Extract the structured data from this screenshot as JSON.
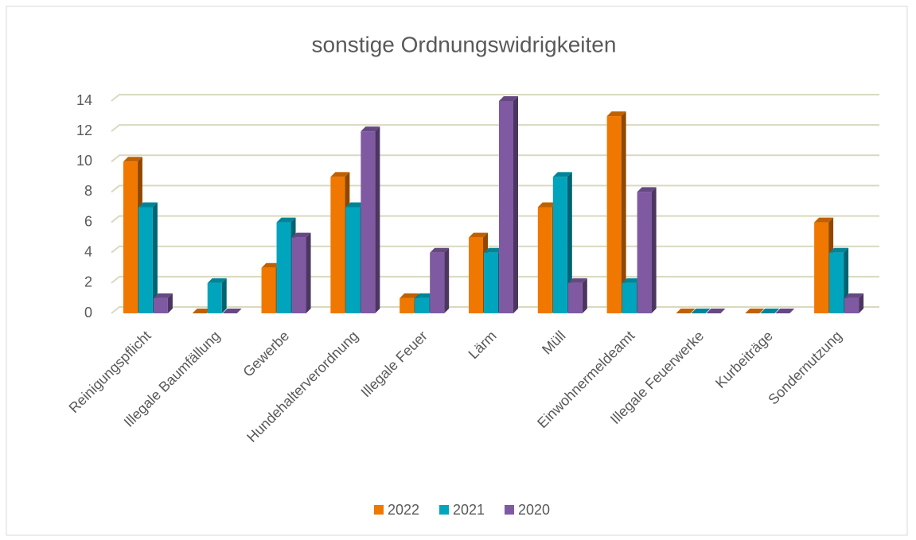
{
  "chart_data": {
    "type": "bar3d",
    "title": "sonstige Ordnungswidrigkeiten",
    "categories": [
      "Reinigungspflicht",
      "Illegale Baumfällung",
      "Gewerbe",
      "Hundehalterverordnung",
      "Illegale Feuer",
      "Lärm",
      "Müll",
      "Einwohnermeldeamt",
      "Illegale Feuerwerke",
      "Kurbeiträge",
      "Sondernutzung"
    ],
    "series": [
      {
        "name": "2022",
        "color": "#f07800",
        "values": [
          10,
          0,
          3,
          9,
          1,
          5,
          7,
          13,
          0,
          0,
          6
        ]
      },
      {
        "name": "2021",
        "color": "#00a5bd",
        "values": [
          7,
          2,
          6,
          7,
          1,
          4,
          9,
          2,
          0,
          0,
          4
        ]
      },
      {
        "name": "2020",
        "color": "#7f5aa2",
        "values": [
          1,
          0,
          5,
          12,
          4,
          14,
          2,
          8,
          0,
          0,
          1
        ]
      }
    ],
    "ylim": [
      0,
      14
    ],
    "yticks": [
      0,
      2,
      4,
      6,
      8,
      10,
      12,
      14
    ],
    "grid": true,
    "legend": "bottom"
  }
}
